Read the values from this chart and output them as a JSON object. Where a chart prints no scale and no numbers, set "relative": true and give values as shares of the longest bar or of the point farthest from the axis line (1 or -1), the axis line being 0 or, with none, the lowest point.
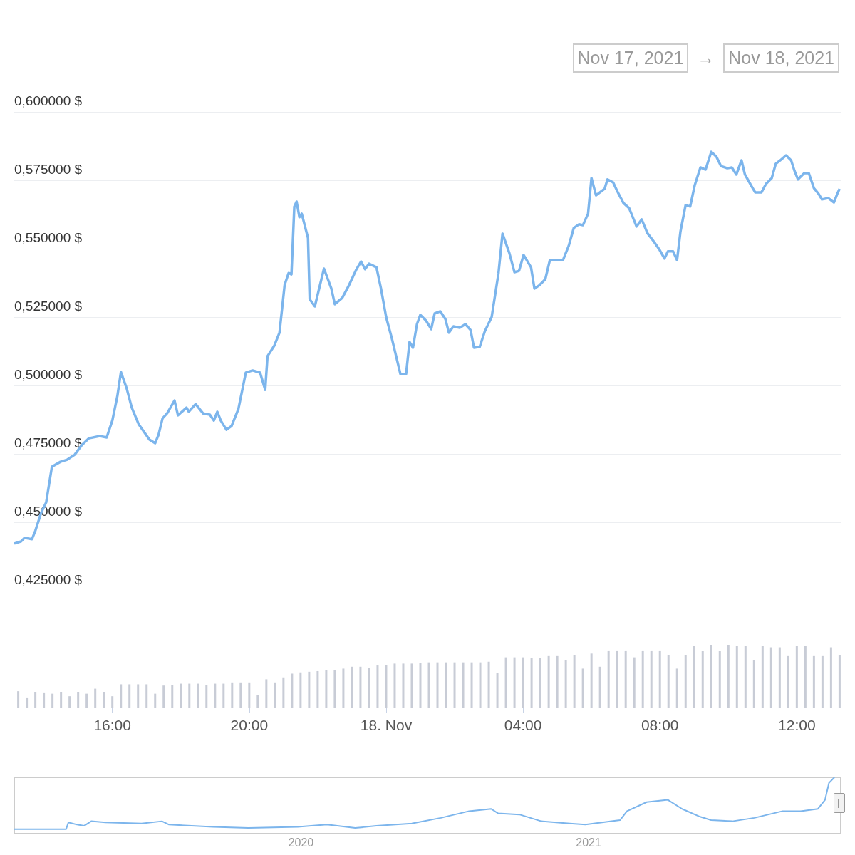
{
  "chart_data": [
    {
      "type": "line",
      "color": "#7cb5ec",
      "annotations": [
        "Nov 17, 2021",
        "→",
        "Nov 18, 2021"
      ],
      "x": [
        "2021-11-17T13:08",
        "2021-11-17T13:20",
        "2021-11-17T13:26",
        "2021-11-17T13:39",
        "2021-11-17T13:45",
        "2021-11-17T13:55",
        "2021-11-17T14:04",
        "2021-11-17T14:14",
        "2021-11-17T14:29",
        "2021-11-17T14:41",
        "2021-11-17T14:54",
        "2021-11-17T15:06",
        "2021-11-17T15:19",
        "2021-11-17T15:38",
        "2021-11-17T15:50",
        "2021-11-17T16:00",
        "2021-11-17T16:09",
        "2021-11-17T16:15",
        "2021-11-17T16:25",
        "2021-11-17T16:34",
        "2021-11-17T16:46",
        "2021-11-17T17:05",
        "2021-11-17T17:15",
        "2021-11-17T17:21",
        "2021-11-17T17:28",
        "2021-11-17T17:36",
        "2021-11-17T17:49",
        "2021-11-17T17:55",
        "2021-11-17T18:10",
        "2021-11-17T18:14",
        "2021-11-17T18:26",
        "2021-11-17T18:39",
        "2021-11-17T18:51",
        "2021-11-17T18:58",
        "2021-11-17T19:04",
        "2021-11-17T19:10",
        "2021-11-17T19:20",
        "2021-11-17T19:29",
        "2021-11-17T19:41",
        "2021-11-17T19:54",
        "2021-11-17T20:06",
        "2021-11-17T20:19",
        "2021-11-17T20:28",
        "2021-11-17T20:32",
        "2021-11-17T20:44",
        "2021-11-17T20:53",
        "2021-11-17T21:02",
        "2021-11-17T21:09",
        "2021-11-17T21:14",
        "2021-11-17T21:19",
        "2021-11-17T21:23",
        "2021-11-17T21:28",
        "2021-11-17T21:32",
        "2021-11-17T21:43",
        "2021-11-17T21:46",
        "2021-11-17T21:55",
        "2021-11-17T22:11",
        "2021-11-17T22:24",
        "2021-11-17T22:30",
        "2021-11-17T22:43",
        "2021-11-17T22:55",
        "2021-11-17T23:08",
        "2021-11-17T23:16",
        "2021-11-17T23:23",
        "2021-11-17T23:30",
        "2021-11-17T23:43",
        "2021-11-17T23:51",
        "2021-11-18T00:00",
        "2021-11-18T00:10",
        "2021-11-18T00:19",
        "2021-11-18T00:25",
        "2021-11-18T00:35",
        "2021-11-18T00:41",
        "2021-11-18T00:47",
        "2021-11-18T00:54",
        "2021-11-18T01:00",
        "2021-11-18T01:10",
        "2021-11-18T01:19",
        "2021-11-18T01:25",
        "2021-11-18T01:35",
        "2021-11-18T01:44",
        "2021-11-18T01:50",
        "2021-11-18T01:58",
        "2021-11-18T02:09",
        "2021-11-18T02:19",
        "2021-11-18T02:28",
        "2021-11-18T02:34",
        "2021-11-18T02:44",
        "2021-11-18T02:53",
        "2021-11-18T03:05",
        "2021-11-18T03:17",
        "2021-11-18T03:24",
        "2021-11-18T03:36",
        "2021-11-18T03:45",
        "2021-11-18T03:53",
        "2021-11-18T04:01",
        "2021-11-18T04:14",
        "2021-11-18T04:20",
        "2021-11-18T04:29",
        "2021-11-18T04:39",
        "2021-11-18T04:47",
        "2021-11-18T04:58",
        "2021-11-18T05:10",
        "2021-11-18T05:20",
        "2021-11-18T05:29",
        "2021-11-18T05:38",
        "2021-11-18T05:45",
        "2021-11-18T05:54",
        "2021-11-18T06:00",
        "2021-11-18T06:08",
        "2021-11-18T06:23",
        "2021-11-18T06:28",
        "2021-11-18T06:38",
        "2021-11-18T06:45",
        "2021-11-18T06:56",
        "2021-11-18T07:06",
        "2021-11-18T07:19",
        "2021-11-18T07:28",
        "2021-11-18T07:38",
        "2021-11-18T07:50",
        "2021-11-18T07:59",
        "2021-11-18T08:08",
        "2021-11-18T08:14",
        "2021-11-18T08:23",
        "2021-11-18T08:30",
        "2021-11-18T08:36",
        "2021-11-18T08:45",
        "2021-11-18T08:53",
        "2021-11-18T09:01",
        "2021-11-18T09:11",
        "2021-11-18T09:20",
        "2021-11-18T09:30",
        "2021-11-18T09:39",
        "2021-11-18T09:47",
        "2021-11-18T09:58",
        "2021-11-18T10:06",
        "2021-11-18T10:14",
        "2021-11-18T10:23",
        "2021-11-18T10:29",
        "2021-11-18T10:41",
        "2021-11-18T10:47",
        "2021-11-18T10:58",
        "2021-11-18T11:06",
        "2021-11-18T11:16",
        "2021-11-18T11:23",
        "2021-11-18T11:31",
        "2021-11-18T11:41",
        "2021-11-18T11:50",
        "2021-11-18T11:56",
        "2021-11-18T12:02",
        "2021-11-18T12:13",
        "2021-11-18T12:21",
        "2021-11-18T12:30",
        "2021-11-18T12:38",
        "2021-11-18T12:44",
        "2021-11-18T12:55",
        "2021-11-18T13:05",
        "2021-11-18T13:11",
        "2021-11-18T13:15"
      ],
      "values": [
        0.4422,
        0.443,
        0.4443,
        0.4438,
        0.4469,
        0.4534,
        0.4573,
        0.4703,
        0.4721,
        0.4729,
        0.4747,
        0.4781,
        0.4807,
        0.4815,
        0.481,
        0.4872,
        0.4964,
        0.5049,
        0.499,
        0.4919,
        0.4859,
        0.4802,
        0.4789,
        0.482,
        0.488,
        0.4898,
        0.4945,
        0.4891,
        0.4919,
        0.4904,
        0.4932,
        0.4898,
        0.4893,
        0.4872,
        0.4904,
        0.4872,
        0.4838,
        0.4852,
        0.4914,
        0.5047,
        0.5055,
        0.5047,
        0.4984,
        0.5107,
        0.5146,
        0.5193,
        0.5367,
        0.5411,
        0.5406,
        0.5654,
        0.5672,
        0.5615,
        0.5628,
        0.5539,
        0.5315,
        0.5289,
        0.5427,
        0.5354,
        0.5297,
        0.532,
        0.5367,
        0.5425,
        0.5453,
        0.5425,
        0.5445,
        0.5432,
        0.5354,
        0.525,
        0.5172,
        0.5094,
        0.5042,
        0.5042,
        0.5159,
        0.5138,
        0.5224,
        0.5258,
        0.5237,
        0.5206,
        0.5263,
        0.5271,
        0.5242,
        0.5193,
        0.5216,
        0.5211,
        0.5224,
        0.5203,
        0.5138,
        0.5141,
        0.5198,
        0.525,
        0.5411,
        0.5555,
        0.5484,
        0.5414,
        0.5419,
        0.5477,
        0.5432,
        0.5354,
        0.5367,
        0.5388,
        0.5458,
        0.5458,
        0.5458,
        0.551,
        0.5576,
        0.5589,
        0.5586,
        0.5628,
        0.5758,
        0.5695,
        0.5719,
        0.5753,
        0.5742,
        0.5711,
        0.5667,
        0.5648,
        0.5581,
        0.5607,
        0.5557,
        0.5524,
        0.5497,
        0.5464,
        0.549,
        0.549,
        0.5458,
        0.5563,
        0.5659,
        0.5654,
        0.5732,
        0.5797,
        0.5789,
        0.5854,
        0.5836,
        0.5802,
        0.5794,
        0.5797,
        0.5771,
        0.5823,
        0.5771,
        0.5727,
        0.5706,
        0.5706,
        0.5737,
        0.5758,
        0.581,
        0.5823,
        0.5841,
        0.5823,
        0.5784,
        0.5753,
        0.5776,
        0.5776,
        0.5721,
        0.5701,
        0.568,
        0.5685,
        0.5669,
        0.5701,
        0.5719
      ],
      "xlim": [
        "2021-11-17T13:08",
        "2021-11-18T13:17"
      ],
      "ylim": [
        0.425,
        0.6
      ],
      "yticks": [
        {
          "value": 0.425,
          "label": "0,425000 $"
        },
        {
          "value": 0.45,
          "label": "0,450000 $"
        },
        {
          "value": 0.475,
          "label": "0,475000 $"
        },
        {
          "value": 0.5,
          "label": "0,500000 $"
        },
        {
          "value": 0.525,
          "label": "0,525000 $"
        },
        {
          "value": 0.55,
          "label": "0,550000 $"
        },
        {
          "value": 0.575,
          "label": "0,575000 $"
        },
        {
          "value": 0.6,
          "label": "0,600000 $"
        }
      ],
      "grid": "y",
      "tick_labels": "y"
    },
    {
      "type": "bar",
      "color": "#c8ccd6",
      "relative": true,
      "x": [
        "2021-11-17T13:15",
        "2021-11-17T13:30",
        "2021-11-17T13:45",
        "2021-11-17T14:00",
        "2021-11-17T14:15",
        "2021-11-17T14:30",
        "2021-11-17T14:45",
        "2021-11-17T15:00",
        "2021-11-17T15:15",
        "2021-11-17T15:30",
        "2021-11-17T15:45",
        "2021-11-17T16:00",
        "2021-11-17T16:15",
        "2021-11-17T16:30",
        "2021-11-17T16:45",
        "2021-11-17T17:00",
        "2021-11-17T17:15",
        "2021-11-17T17:30",
        "2021-11-17T17:45",
        "2021-11-17T18:00",
        "2021-11-17T18:15",
        "2021-11-17T18:30",
        "2021-11-17T18:45",
        "2021-11-17T19:00",
        "2021-11-17T19:15",
        "2021-11-17T19:30",
        "2021-11-17T19:45",
        "2021-11-17T20:00",
        "2021-11-17T20:15",
        "2021-11-17T20:30",
        "2021-11-17T20:45",
        "2021-11-17T21:00",
        "2021-11-17T21:15",
        "2021-11-17T21:30",
        "2021-11-17T21:45",
        "2021-11-17T22:00",
        "2021-11-17T22:15",
        "2021-11-17T22:30",
        "2021-11-17T22:45",
        "2021-11-17T23:00",
        "2021-11-17T23:15",
        "2021-11-17T23:30",
        "2021-11-17T23:45",
        "2021-11-18T00:00",
        "2021-11-18T00:15",
        "2021-11-18T00:30",
        "2021-11-18T00:45",
        "2021-11-18T01:00",
        "2021-11-18T01:15",
        "2021-11-18T01:30",
        "2021-11-18T01:45",
        "2021-11-18T02:00",
        "2021-11-18T02:15",
        "2021-11-18T02:30",
        "2021-11-18T02:45",
        "2021-11-18T03:00",
        "2021-11-18T03:15",
        "2021-11-18T03:30",
        "2021-11-18T03:45",
        "2021-11-18T04:00",
        "2021-11-18T04:15",
        "2021-11-18T04:30",
        "2021-11-18T04:45",
        "2021-11-18T05:00",
        "2021-11-18T05:15",
        "2021-11-18T05:30",
        "2021-11-18T05:45",
        "2021-11-18T06:00",
        "2021-11-18T06:15",
        "2021-11-18T06:30",
        "2021-11-18T06:45",
        "2021-11-18T07:00",
        "2021-11-18T07:15",
        "2021-11-18T07:30",
        "2021-11-18T07:45",
        "2021-11-18T08:00",
        "2021-11-18T08:15",
        "2021-11-18T08:30",
        "2021-11-18T08:45",
        "2021-11-18T09:00",
        "2021-11-18T09:15",
        "2021-11-18T09:30",
        "2021-11-18T09:45",
        "2021-11-18T10:00",
        "2021-11-18T10:15",
        "2021-11-18T10:30",
        "2021-11-18T10:45",
        "2021-11-18T11:00",
        "2021-11-18T11:15",
        "2021-11-18T11:30",
        "2021-11-18T11:45",
        "2021-11-18T12:00",
        "2021-11-18T12:15",
        "2021-11-18T12:30",
        "2021-11-18T12:45",
        "2021-11-18T13:00",
        "2021-11-18T13:15"
      ],
      "values": [
        0.26,
        0.16,
        0.25,
        0.24,
        0.22,
        0.25,
        0.18,
        0.25,
        0.22,
        0.3,
        0.25,
        0.18,
        0.37,
        0.37,
        0.37,
        0.37,
        0.22,
        0.35,
        0.36,
        0.38,
        0.38,
        0.38,
        0.36,
        0.38,
        0.38,
        0.4,
        0.4,
        0.4,
        0.2,
        0.45,
        0.4,
        0.48,
        0.54,
        0.56,
        0.57,
        0.58,
        0.6,
        0.6,
        0.62,
        0.65,
        0.65,
        0.63,
        0.67,
        0.68,
        0.7,
        0.7,
        0.7,
        0.71,
        0.72,
        0.72,
        0.72,
        0.72,
        0.72,
        0.72,
        0.72,
        0.73,
        0.55,
        0.8,
        0.8,
        0.8,
        0.79,
        0.79,
        0.82,
        0.82,
        0.75,
        0.84,
        0.62,
        0.86,
        0.65,
        0.91,
        0.91,
        0.91,
        0.8,
        0.91,
        0.91,
        0.91,
        0.84,
        0.62,
        0.84,
        0.98,
        0.9,
        1,
        0.9,
        1,
        0.98,
        0.98,
        0.75,
        0.98,
        0.96,
        0.96,
        0.82,
        0.98,
        0.98,
        0.82,
        0.82,
        0.96,
        0.84
      ],
      "xlim": [
        "2021-11-17T13:08",
        "2021-11-18T13:17"
      ],
      "xticks": [
        {
          "value": "2021-11-17T16:00",
          "label": "16:00"
        },
        {
          "value": "2021-11-17T20:00",
          "label": "20:00"
        },
        {
          "value": "2021-11-18T00:00",
          "label": "18. Nov"
        },
        {
          "value": "2021-11-18T04:00",
          "label": "04:00"
        },
        {
          "value": "2021-11-18T08:00",
          "label": "08:00"
        },
        {
          "value": "2021-11-18T12:00",
          "label": "12:00"
        }
      ],
      "tick_labels": "x"
    },
    {
      "type": "line",
      "color": "#7cb5ec",
      "relative": true,
      "x": [
        "2019-01-01",
        "2019-03-08",
        "2019-03-11",
        "2019-03-22",
        "2019-03-31",
        "2019-04-09",
        "2019-04-27",
        "2019-06-12",
        "2019-07-08",
        "2019-07-17",
        "2019-09-11",
        "2019-10-26",
        "2019-12-28",
        "2020-02-03",
        "2020-03-10",
        "2020-04-06",
        "2020-05-21",
        "2020-06-27",
        "2020-08-02",
        "2020-08-30",
        "2020-09-08",
        "2020-10-05",
        "2020-11-02",
        "2020-12-08",
        "2020-12-28",
        "2021-02-10",
        "2021-02-19",
        "2021-03-16",
        "2021-04-12",
        "2021-04-30",
        "2021-05-23",
        "2021-06-06",
        "2021-07-03",
        "2021-07-31",
        "2021-09-05",
        "2021-09-28",
        "2021-10-20",
        "2021-10-29",
        "2021-11-03",
        "2021-11-10"
      ],
      "values": [
        0.08,
        0.08,
        0.2,
        0.16,
        0.14,
        0.22,
        0.2,
        0.18,
        0.22,
        0.16,
        0.12,
        0.1,
        0.12,
        0.16,
        0.1,
        0.14,
        0.18,
        0.28,
        0.4,
        0.44,
        0.36,
        0.34,
        0.22,
        0.18,
        0.16,
        0.24,
        0.4,
        0.56,
        0.6,
        0.44,
        0.3,
        0.24,
        0.22,
        0.28,
        0.4,
        0.4,
        0.44,
        0.6,
        0.9,
        1
      ],
      "xlim": [
        "2019-01-01",
        "2021-11-18"
      ],
      "xticks": [
        {
          "value": "2020-01-01",
          "label": "2020"
        },
        {
          "value": "2021-01-01",
          "label": "2021"
        }
      ],
      "grid": "x"
    }
  ]
}
